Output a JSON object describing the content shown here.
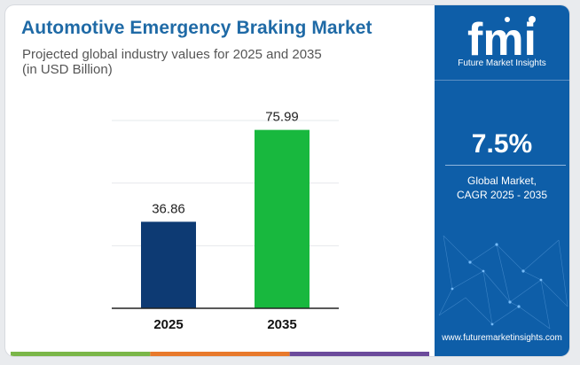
{
  "header": {
    "title": "Automotive Emergency Braking Market",
    "subtitle_line1": "Projected global industry values for 2025 and 2035",
    "subtitle_line2": "(in USD Billion)"
  },
  "chart_data": {
    "type": "bar",
    "categories": [
      "2025",
      "2035"
    ],
    "values": [
      36.86,
      75.99
    ],
    "value_labels": [
      "36.86",
      "75.99"
    ],
    "colors": [
      "#0d3a73",
      "#18b83e"
    ],
    "ylim": [
      0,
      80
    ],
    "grid": true,
    "legend": "none",
    "xlabel": "",
    "ylabel": ""
  },
  "sidebar": {
    "logo_text": "fmi",
    "logo_tagline": "Future Market Insights",
    "cagr_value": "7.5%",
    "cagr_label_line1": "Global Market,",
    "cagr_label_line2": "CAGR 2025 - 2035",
    "website": "www.futuremarketinsights.com",
    "background_color": "#0e5ea8"
  },
  "bottom_bar_colors": [
    "#7ab648",
    "#e8792b",
    "#6b4a9b"
  ]
}
